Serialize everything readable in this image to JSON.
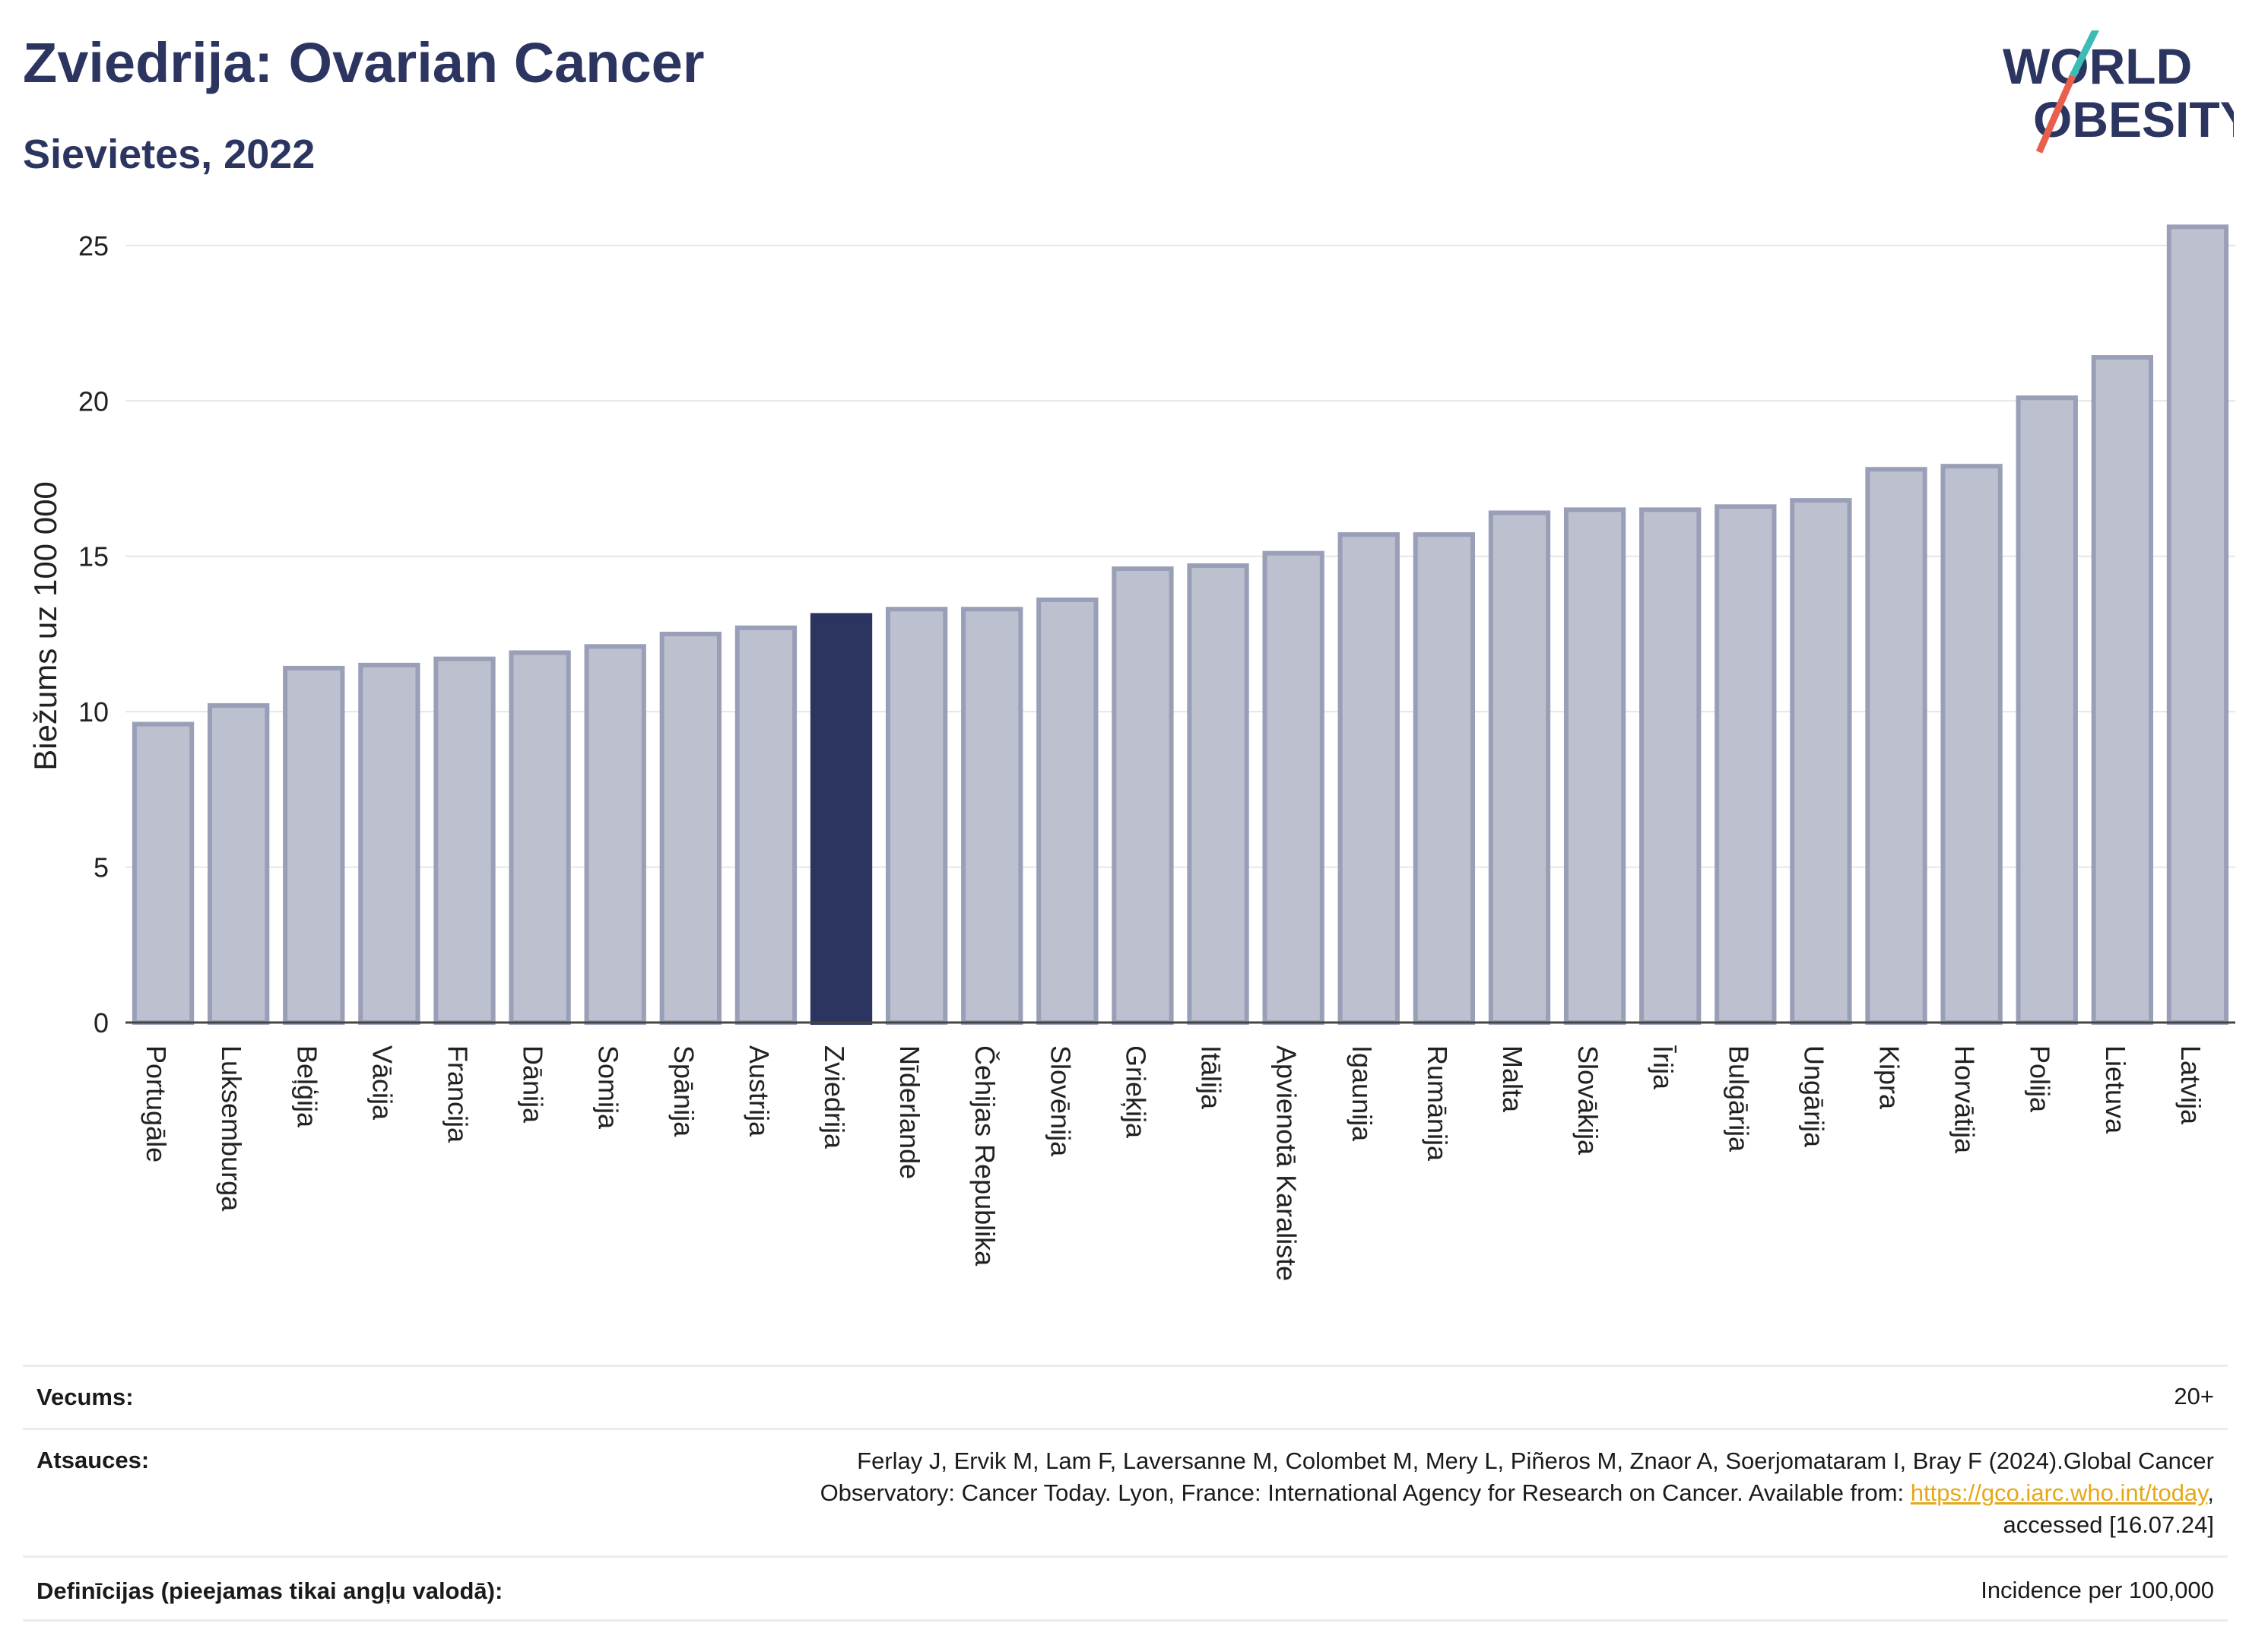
{
  "header": {
    "title": "Zviedrija: Ovarian Cancer",
    "subtitle": "Sievietes, 2022"
  },
  "logo": {
    "line1": "WORLD",
    "line2": "OBESITY"
  },
  "colors": {
    "highlight": "#2b3560",
    "bar_fill": "#bcc0cf",
    "bar_stroke": "#9a9fb8",
    "grid": "#e6e6e6",
    "logo_text": "#2b3560",
    "logo_slash_top": "#3bbcb4",
    "logo_slash_bottom": "#e8604c",
    "link": "#e6a817"
  },
  "chart_data": {
    "type": "bar",
    "ylabel": "Biežums uz 100 000",
    "xlabel": "",
    "ylim": [
      0,
      26
    ],
    "yticks": [
      0,
      5,
      10,
      15,
      20,
      25
    ],
    "grid": true,
    "highlight_category": "Zviedrija",
    "categories": [
      "Portugāle",
      "Luksemburga",
      "Beļģija",
      "Vācija",
      "Francija",
      "Dānija",
      "Somija",
      "Spānija",
      "Austrija",
      "Zviedrija",
      "Nīderlande",
      "Čehijas Republika",
      "Slovēnija",
      "Grieķija",
      "Itālija",
      "Apvienotā Karaliste",
      "Igaunija",
      "Rumānija",
      "Malta",
      "Slovākija",
      "Īrija",
      "Bulgārija",
      "Ungārija",
      "Kipra",
      "Horvātija",
      "Polija",
      "Lietuva",
      "Latvija"
    ],
    "values": [
      9.6,
      10.2,
      11.4,
      11.5,
      11.7,
      11.9,
      12.1,
      12.5,
      12.7,
      13.1,
      13.3,
      13.3,
      13.6,
      14.6,
      14.7,
      15.1,
      15.7,
      15.7,
      16.4,
      16.5,
      16.5,
      16.6,
      16.8,
      17.8,
      17.9,
      20.1,
      21.4,
      25.6
    ]
  },
  "info": {
    "age_label": "Vecums:",
    "age_value": "20+",
    "refs_label": "Atsauces:",
    "refs_line1": "Ferlay J, Ervik M, Lam F, Laversanne M, Colombet M, Mery L, Piñeros M, Znaor A, Soerjomataram I, Bray F (2024).Global Cancer",
    "refs_line2_pre": "Observatory: Cancer Today. Lyon, France: International Agency for Research on Cancer. Available from: ",
    "refs_link": "https://gco.iarc.who.int/today",
    "refs_line2_post": ",",
    "refs_line3": "accessed [16.07.24]",
    "def_label": "Definīcijas (pieejamas tikai angļu valodā):",
    "def_value": "Incidence per 100,000"
  }
}
